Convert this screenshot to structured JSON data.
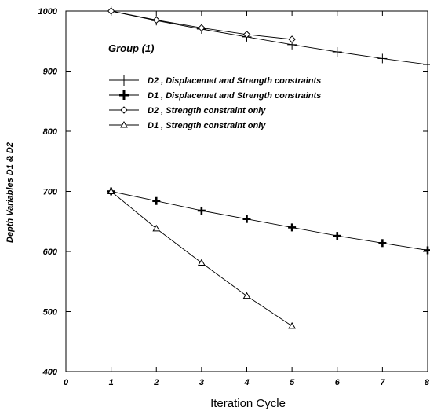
{
  "chart_data": {
    "type": "line",
    "title": "",
    "annotation": "Group (1)",
    "xlabel": "Iteration Cycle",
    "ylabel": "Depth Variables D1 & D2",
    "xlim": [
      0,
      8
    ],
    "ylim": [
      400,
      1000
    ],
    "xticks": [
      0,
      1,
      2,
      3,
      4,
      5,
      6,
      7,
      8
    ],
    "yticks": [
      400,
      500,
      600,
      700,
      800,
      900,
      1000
    ],
    "grid": false,
    "legend_position": "upper-center",
    "series": [
      {
        "name": "D2 , Displacemet and Strength constraints",
        "marker": "plus-thin",
        "x": [
          1,
          2,
          3,
          4,
          5,
          6,
          7,
          8
        ],
        "y": [
          1000,
          984,
          970,
          957,
          944,
          932,
          921,
          911
        ]
      },
      {
        "name": "D1 , Displacemet and Strength constraints",
        "marker": "plus-bold",
        "x": [
          1,
          2,
          3,
          4,
          5,
          6,
          7,
          8
        ],
        "y": [
          700,
          684,
          668,
          654,
          640,
          626,
          614,
          602
        ]
      },
      {
        "name": "D2 ,  Strength constraint only",
        "marker": "diamond",
        "x": [
          1,
          2,
          3,
          4,
          5
        ],
        "y": [
          1000,
          985,
          972,
          961,
          953
        ]
      },
      {
        "name": "D1 , Strength constraint only",
        "marker": "triangle",
        "x": [
          1,
          2,
          3,
          4,
          5
        ],
        "y": [
          700,
          638,
          581,
          526,
          476
        ]
      }
    ]
  }
}
